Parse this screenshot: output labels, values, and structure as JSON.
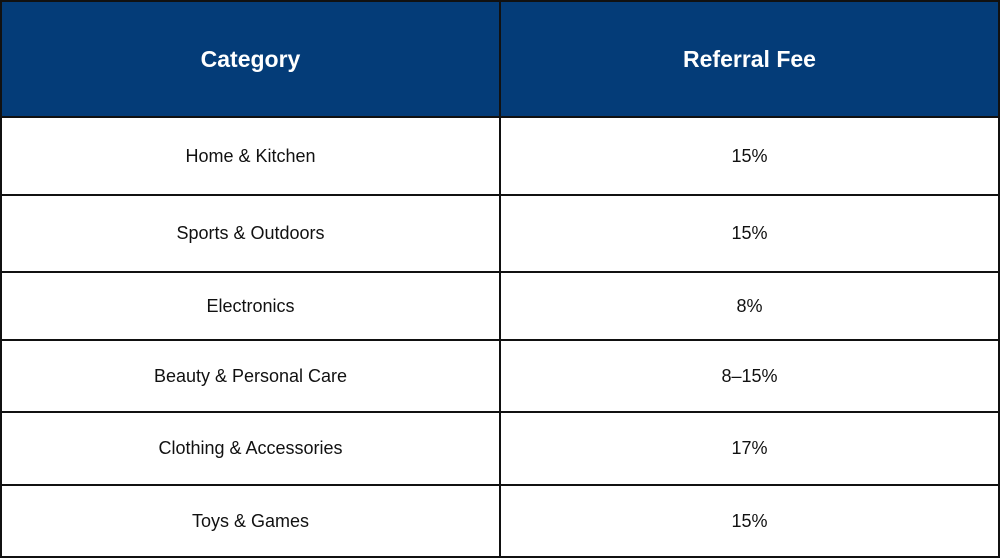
{
  "table": {
    "header": {
      "category": "Category",
      "fee": "Referral Fee"
    },
    "rows": [
      {
        "category": "Home & Kitchen",
        "fee": "15%"
      },
      {
        "category": "Sports & Outdoors",
        "fee": "15%"
      },
      {
        "category": "Electronics",
        "fee": "8%"
      },
      {
        "category": "Beauty & Personal Care",
        "fee": "8–15%"
      },
      {
        "category": "Clothing & Accessories",
        "fee": "17%"
      },
      {
        "category": "Toys & Games",
        "fee": "15%"
      }
    ],
    "colors": {
      "header_background": "#043c78",
      "header_text": "#ffffff",
      "body_text": "#111111",
      "border": "#111111"
    }
  }
}
